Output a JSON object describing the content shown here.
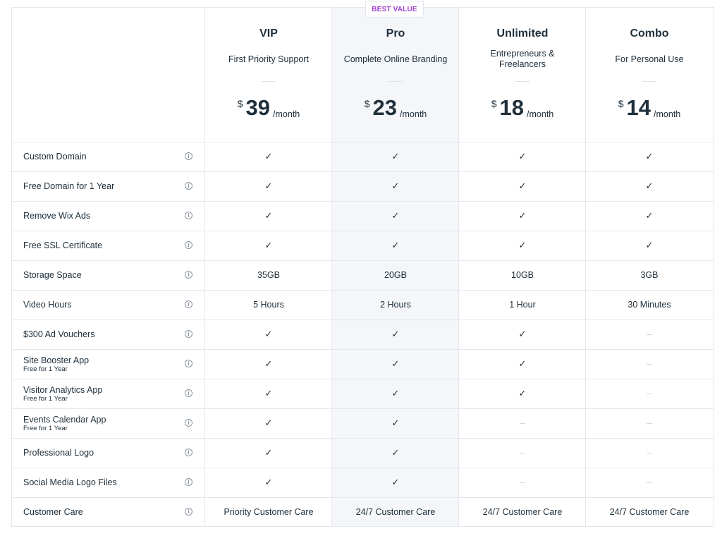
{
  "badge": "BEST VALUE",
  "plans": [
    {
      "name": "VIP",
      "desc": "First Priority Support",
      "currency": "$",
      "price": "39",
      "period": "/month"
    },
    {
      "name": "Pro",
      "desc": "Complete Online Branding",
      "currency": "$",
      "price": "23",
      "period": "/month"
    },
    {
      "name": "Unlimited",
      "desc": "Entrepreneurs & Freelancers",
      "currency": "$",
      "price": "18",
      "period": "/month"
    },
    {
      "name": "Combo",
      "desc": "For Personal Use",
      "currency": "$",
      "price": "14",
      "period": "/month"
    }
  ],
  "check_glyph": "✓",
  "info_glyph": "i",
  "features": [
    {
      "label": "Custom Domain",
      "sub": "",
      "values": [
        "check",
        "check",
        "check",
        "check"
      ]
    },
    {
      "label": "Free Domain for 1 Year",
      "sub": "",
      "values": [
        "check",
        "check",
        "check",
        "check"
      ]
    },
    {
      "label": "Remove Wix Ads",
      "sub": "",
      "values": [
        "check",
        "check",
        "check",
        "check"
      ]
    },
    {
      "label": "Free SSL Certificate",
      "sub": "",
      "values": [
        "check",
        "check",
        "check",
        "check"
      ]
    },
    {
      "label": "Storage Space",
      "sub": "",
      "values": [
        "35GB",
        "20GB",
        "10GB",
        "3GB"
      ]
    },
    {
      "label": "Video Hours",
      "sub": "",
      "values": [
        "5 Hours",
        "2 Hours",
        "1 Hour",
        "30 Minutes"
      ]
    },
    {
      "label": "$300 Ad Vouchers",
      "sub": "",
      "values": [
        "check",
        "check",
        "check",
        "none"
      ]
    },
    {
      "label": "Site Booster App",
      "sub": "Free for 1 Year",
      "values": [
        "check",
        "check",
        "check",
        "none"
      ]
    },
    {
      "label": "Visitor Analytics App",
      "sub": "Free for 1 Year",
      "values": [
        "check",
        "check",
        "check",
        "none"
      ]
    },
    {
      "label": "Events Calendar App",
      "sub": "Free for 1 Year",
      "values": [
        "check",
        "check",
        "none",
        "none"
      ]
    },
    {
      "label": "Professional Logo",
      "sub": "",
      "values": [
        "check",
        "check",
        "none",
        "none"
      ]
    },
    {
      "label": "Social Media Logo Files",
      "sub": "",
      "values": [
        "check",
        "check",
        "none",
        "none"
      ]
    },
    {
      "label": "Customer Care",
      "sub": "",
      "values": [
        "Priority Customer Care",
        "24/7 Customer Care",
        "24/7 Customer Care",
        "24/7 Customer Care"
      ]
    }
  ]
}
